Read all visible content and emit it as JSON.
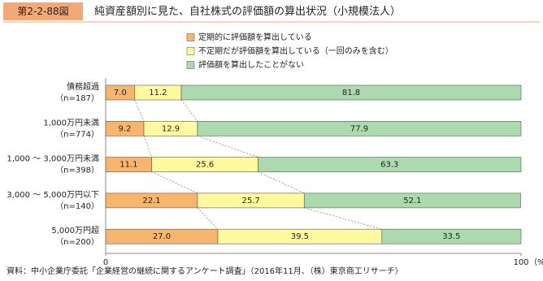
{
  "chart_data": {
    "type": "stacked-bar-horizontal",
    "figure_label": "第2-2-88図",
    "title": "純資産額別に見た、自社株式の評価額の算出状況（小規模法人）",
    "categories": [
      [
        "債務超過",
        "（n=187）"
      ],
      [
        "1,000万円未満",
        "（n=774）"
      ],
      [
        "1,000 ～ 3,000万円未満",
        "（n=398）"
      ],
      [
        "3,000 ～ 5,000万円以下",
        "（n=140）"
      ],
      [
        "5,000万円超",
        "（n=200）"
      ]
    ],
    "series": [
      {
        "name": "定期的に評価額を算出している",
        "color": "#f8b56e",
        "values": [
          7.0,
          9.2,
          11.1,
          22.1,
          27.0
        ],
        "value_labels": [
          "7.0",
          "9.2",
          "11.1",
          "22.1",
          "27.0"
        ]
      },
      {
        "name": "不定期だが評価額を算出している（一回のみを含む）",
        "color": "#fffaa0",
        "values": [
          11.2,
          12.9,
          25.6,
          25.7,
          39.5
        ],
        "value_labels": [
          "11.2",
          "12.9",
          "25.6",
          "25.7",
          "39.5"
        ]
      },
      {
        "name": "評価額を算出したことがない",
        "color": "#acd9ad",
        "values": [
          81.8,
          77.9,
          63.3,
          52.1,
          33.5
        ],
        "value_labels": [
          "81.8",
          "77.9",
          "63.3",
          "52.1",
          "33.5"
        ]
      }
    ],
    "xlim": [
      0,
      100
    ],
    "xticks": [
      0,
      100
    ],
    "x_unit": "（%）",
    "source": "資料：中小企業庁委託「企業経営の継続に関するアンケート調査」（2016年11月、（株）東京商工リサーチ）"
  }
}
